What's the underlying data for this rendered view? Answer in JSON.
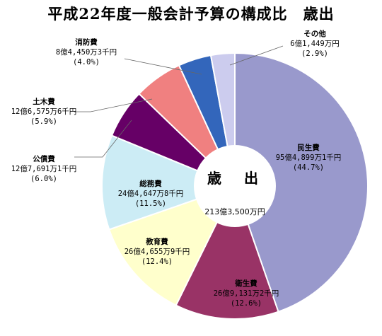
{
  "title": "平成22年度一般会計予算の構成比　歳出",
  "center": {
    "title": "歳　出",
    "total": "213億3,500万円"
  },
  "chart_data": {
    "type": "pie",
    "title": "平成22年度一般会計予算の構成比　歳出",
    "total": "213億3,500万円",
    "slices": [
      {
        "name": "民生費",
        "amount": "95億4,899万1千円",
        "percent": 44.7,
        "percent_label": "(44.7%)",
        "color": "#9999cc"
      },
      {
        "name": "衛生費",
        "amount": "26億9,131万2千円",
        "percent": 12.6,
        "percent_label": "(12.6%)",
        "color": "#993366"
      },
      {
        "name": "教育費",
        "amount": "26億4,655万9千円",
        "percent": 12.4,
        "percent_label": "(12.4%)",
        "color": "#ffffcc"
      },
      {
        "name": "総務費",
        "amount": "24億4,647万8千円",
        "percent": 11.5,
        "percent_label": "(11.5%)",
        "color": "#ccecf5"
      },
      {
        "name": "公債費",
        "amount": "12億7,691万1千円",
        "percent": 6.0,
        "percent_label": "(6.0%)",
        "color": "#660066"
      },
      {
        "name": "土木費",
        "amount": "12億6,575万6千円",
        "percent": 5.9,
        "percent_label": "(5.9%)",
        "color": "#f08080"
      },
      {
        "name": "消防費",
        "amount": "8億4,450万3千円",
        "percent": 4.0,
        "percent_label": "(4.0%)",
        "color": "#3366bb"
      },
      {
        "name": "その他",
        "amount": "6億1,449万円",
        "percent": 2.9,
        "percent_label": "(2.9%)",
        "color": "#ccccee"
      }
    ]
  }
}
